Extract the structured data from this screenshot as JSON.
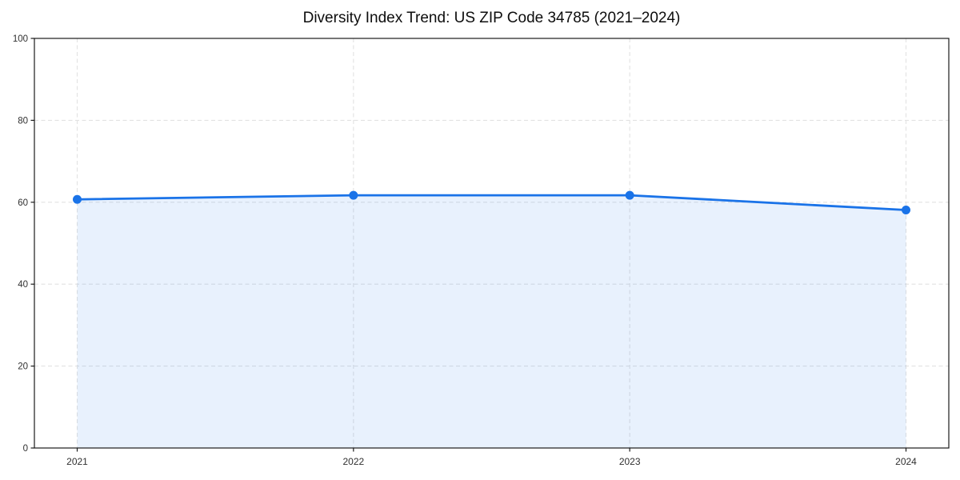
{
  "chart_data": {
    "type": "area",
    "title": "Diversity Index Trend: US ZIP Code 34785 (2021–2024)",
    "categories": [
      "2021",
      "2022",
      "2023",
      "2024"
    ],
    "series": [
      {
        "name": "Diversity Index",
        "values": [
          60.7,
          61.7,
          61.7,
          58.1
        ]
      }
    ],
    "xlabel": "",
    "ylabel": "",
    "ylim": [
      0,
      100
    ],
    "yticks": [
      0,
      20,
      40,
      60,
      80,
      100
    ],
    "grid": "dashed both",
    "legend_position": "none",
    "colors": {
      "line": "#1a73e8",
      "marker": "#1a73e8",
      "fill": "#1a73e8",
      "fill_opacity": 0.1,
      "gridline": "#e2e2e2",
      "spine": "#1a1a1a",
      "tick_label": "#303030",
      "background": "#ffffff"
    }
  }
}
